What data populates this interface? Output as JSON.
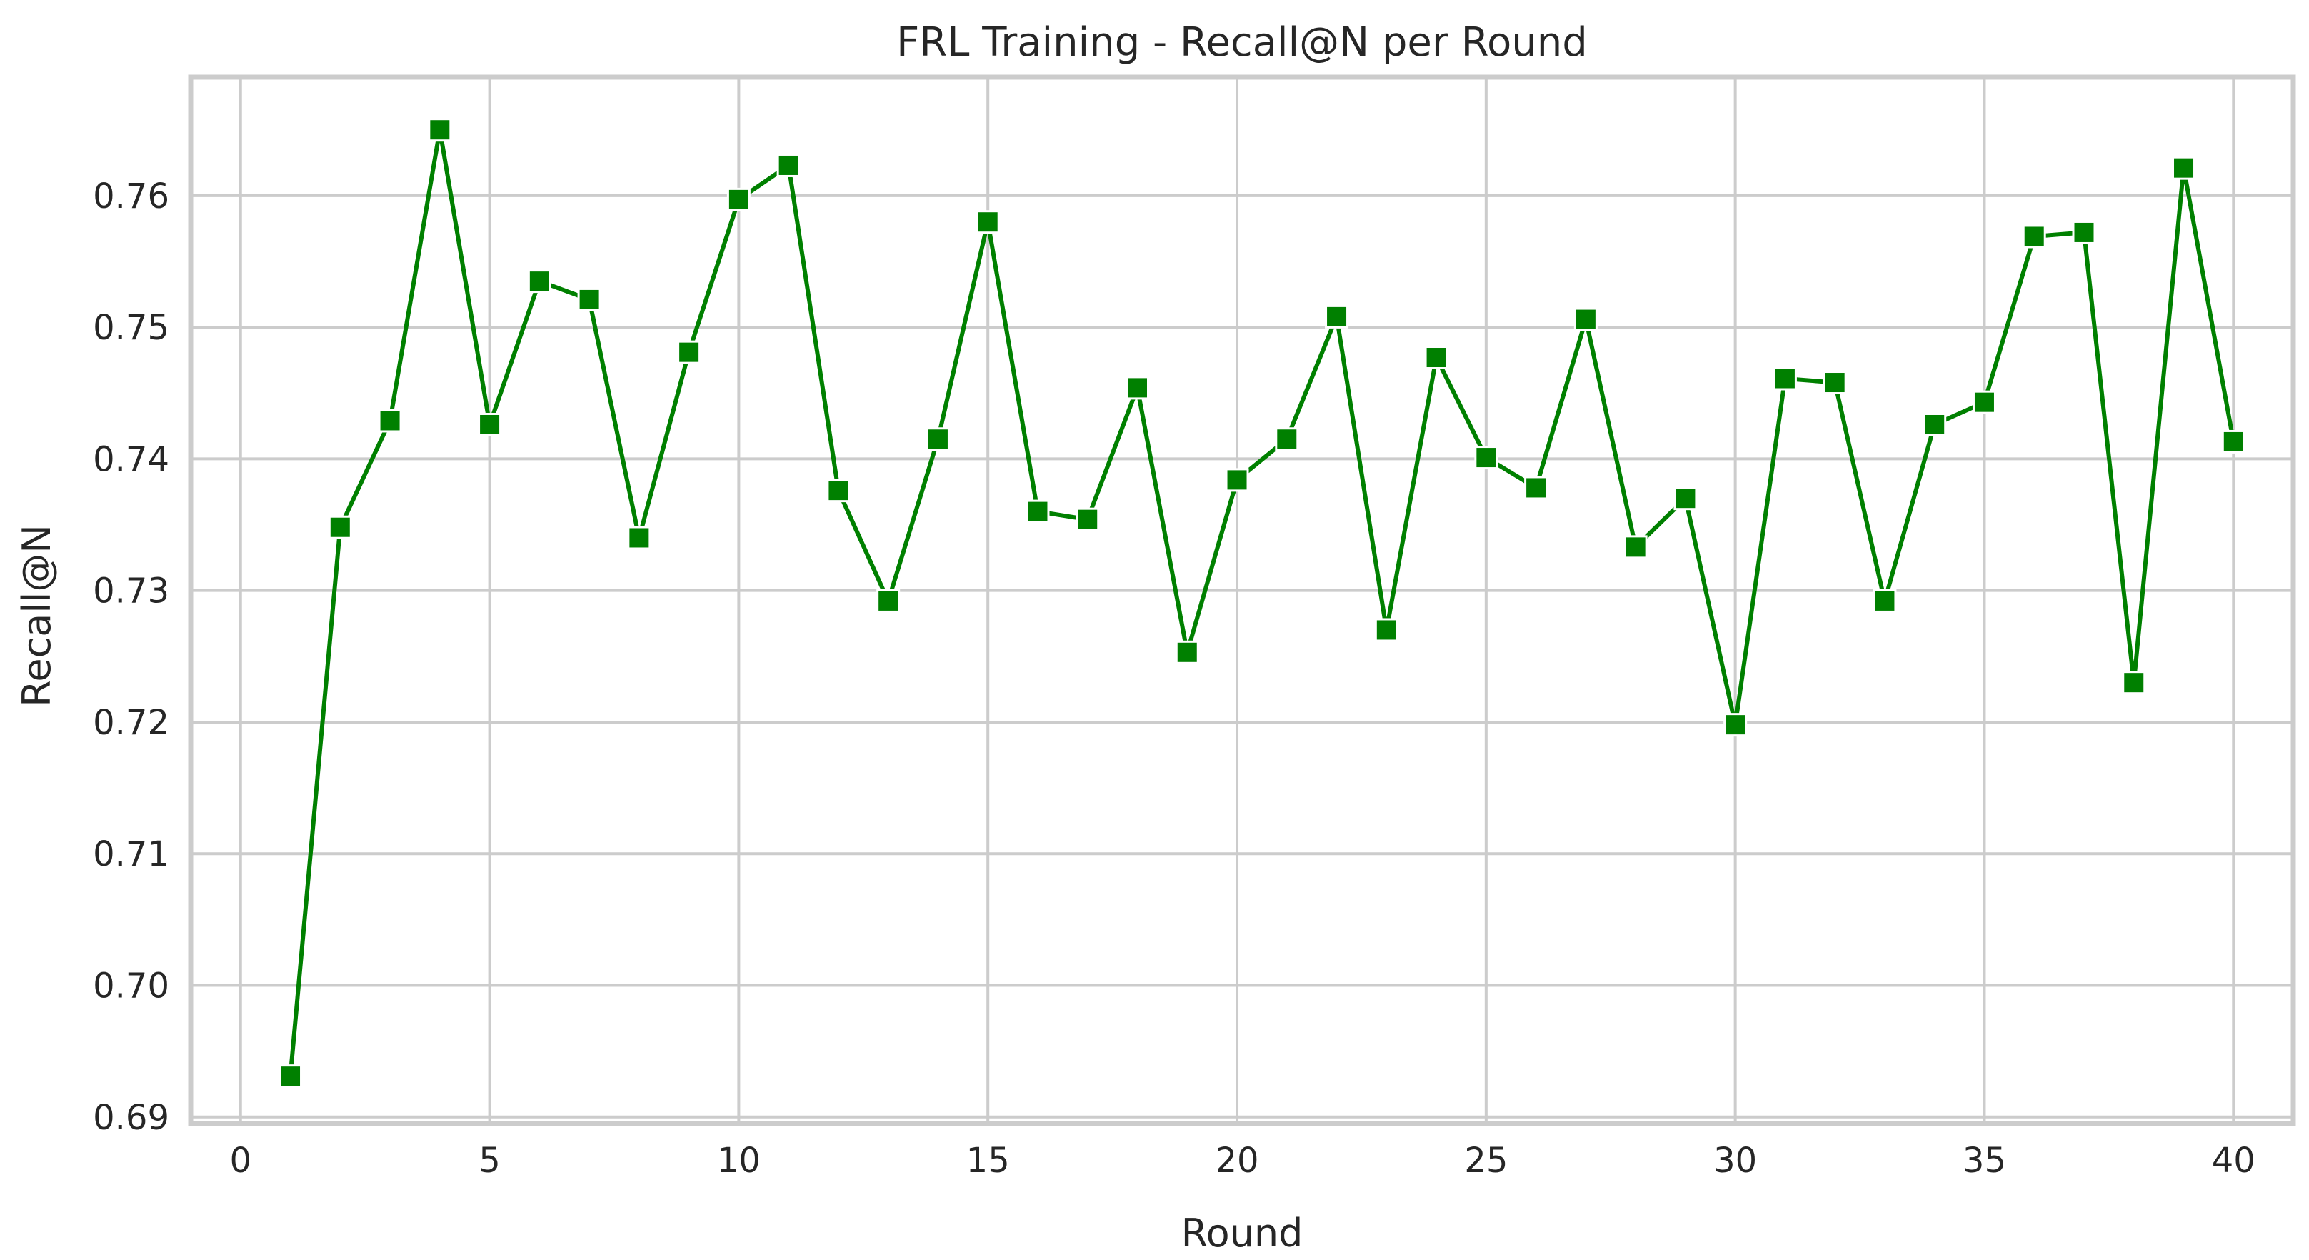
{
  "chart_data": {
    "type": "line",
    "title": "FRL Training - Recall@N per Round",
    "xlabel": "Round",
    "ylabel": "Recall@N",
    "xlim": [
      -1.0,
      41.2
    ],
    "ylim": [
      0.6895,
      0.769
    ],
    "xticks": [
      0,
      5,
      10,
      15,
      20,
      25,
      30,
      35,
      40
    ],
    "yticks": [
      0.69,
      0.7,
      0.71,
      0.72,
      0.73,
      0.74,
      0.75,
      0.76
    ],
    "ytick_labels": [
      "0.69",
      "0.70",
      "0.71",
      "0.72",
      "0.73",
      "0.74",
      "0.75",
      "0.76"
    ],
    "grid": true,
    "marker": "square",
    "color": "#008000",
    "x": [
      1,
      2,
      3,
      4,
      5,
      6,
      7,
      8,
      9,
      10,
      11,
      12,
      13,
      14,
      15,
      16,
      17,
      18,
      19,
      20,
      21,
      22,
      23,
      24,
      25,
      26,
      27,
      28,
      29,
      30,
      31,
      32,
      33,
      34,
      35,
      36,
      37,
      38,
      39,
      40
    ],
    "values": [
      0.6931,
      0.7348,
      0.7429,
      0.765,
      0.7426,
      0.7535,
      0.7521,
      0.734,
      0.7481,
      0.7597,
      0.7623,
      0.7376,
      0.7292,
      0.7415,
      0.758,
      0.736,
      0.7354,
      0.7454,
      0.7253,
      0.7384,
      0.7415,
      0.7508,
      0.727,
      0.7477,
      0.7401,
      0.7378,
      0.7506,
      0.7333,
      0.737,
      0.7198,
      0.7461,
      0.7458,
      0.7292,
      0.7426,
      0.7443,
      0.7569,
      0.7572,
      0.723,
      0.7621,
      0.7413
    ]
  }
}
